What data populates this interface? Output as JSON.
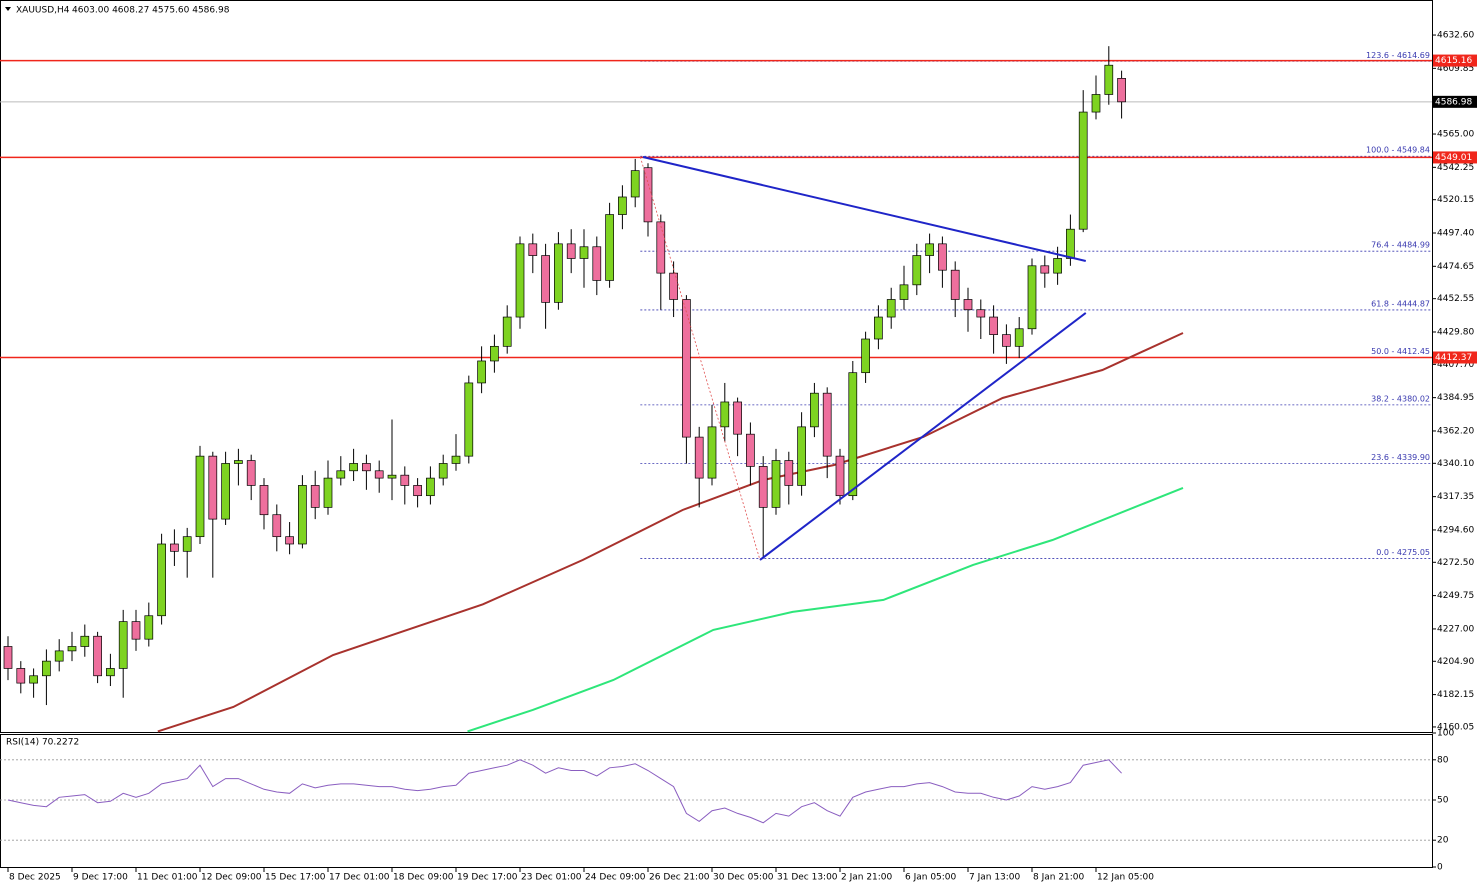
{
  "chart_data": {
    "type": "candlestick",
    "title": "XAUUSD,H4",
    "ohlc_text": "4603.00 4608.27 4575.60 4586.98",
    "up_color": "#7ed321",
    "down_color": "#ee6f9d",
    "xlim": [
      -0.625,
      111.25
    ],
    "xticks": [
      {
        "value": 0,
        "label": "8 Dec 2025"
      },
      {
        "value": 5,
        "label": "9 Dec 17:00"
      },
      {
        "value": 10,
        "label": "11 Dec 01:00"
      },
      {
        "value": 15,
        "label": "12 Dec 09:00"
      },
      {
        "value": 20,
        "label": "15 Dec 17:00"
      },
      {
        "value": 25,
        "label": "17 Dec 01:00"
      },
      {
        "value": 30,
        "label": "18 Dec 09:00"
      },
      {
        "value": 35,
        "label": "19 Dec 17:00"
      },
      {
        "value": 40,
        "label": "23 Dec 01:00"
      },
      {
        "value": 45,
        "label": "24 Dec 09:00"
      },
      {
        "value": 50,
        "label": "26 Dec 21:00"
      },
      {
        "value": 55,
        "label": "30 Dec 05:00"
      },
      {
        "value": 60,
        "label": "31 Dec 13:00"
      },
      {
        "value": 65,
        "label": "2 Jan 21:00"
      },
      {
        "value": 70,
        "label": "6 Jan 05:00"
      },
      {
        "value": 75,
        "label": "7 Jan 13:00"
      },
      {
        "value": 80,
        "label": "8 Jan 21:00"
      },
      {
        "value": 85,
        "label": "12 Jan 05:00"
      }
    ],
    "ylim": [
      4156.6,
      4653.8
    ],
    "yticks": [
      {
        "value": 4632.6,
        "label": "4632.60"
      },
      4609.85,
      {
        "value": 4565,
        "label": "4565.00"
      },
      4542.25,
      4520.15,
      {
        "value": 4497.4,
        "label": "4497.40"
      },
      4474.65,
      4452.55,
      {
        "value": 4429.8,
        "label": "4429.80"
      },
      {
        "value": 4407.7,
        "label": "4407.70"
      },
      4384.95,
      {
        "value": 4362.2,
        "label": "4362.20"
      },
      {
        "value": 4340.1,
        "label": "4340.10"
      },
      4317.35,
      {
        "value": 4294.6,
        "label": "4294.60"
      },
      {
        "value": 4272.5,
        "label": "4272.50"
      },
      4249.75,
      {
        "value": 4227,
        "label": "4227.00"
      },
      {
        "value": 4204.9,
        "label": "4204.90"
      },
      4182.15,
      4160.05
    ],
    "open": [
      4215,
      4200,
      4190,
      4195,
      4205,
      4212,
      4215,
      4222,
      4195,
      4200,
      4232,
      4220,
      4236,
      4285,
      4280,
      4290,
      4345,
      4302,
      4340,
      4342,
      4325,
      4305,
      4290,
      4285,
      4325,
      4310,
      4330,
      4335,
      4340,
      4335,
      4330,
      4332,
      4325,
      4318,
      4330,
      4340,
      4345,
      4395,
      4410,
      4420,
      4440,
      4490,
      4482,
      4450,
      4490,
      4480,
      4488,
      4465,
      4510,
      4522,
      4542,
      4505,
      4470,
      4452,
      4358,
      4330,
      4365,
      4382,
      4360,
      4338,
      4310,
      4342,
      4325,
      4365,
      4388,
      4345,
      4318,
      4402,
      4425,
      4440,
      4452,
      4462,
      4482,
      4490,
      4472,
      4452,
      4445,
      4440,
      4428,
      4420,
      4432,
      4475,
      4470,
      4480,
      4500,
      4580,
      4592,
      4603
    ],
    "high": [
      4222,
      4205,
      4200,
      4213,
      4220,
      4225,
      4230,
      4225,
      4210,
      4240,
      4240,
      4245,
      4292,
      4295,
      4296,
      4352,
      4348,
      4348,
      4350,
      4346,
      4330,
      4312,
      4300,
      4332,
      4335,
      4342,
      4345,
      4350,
      4346,
      4342,
      4370,
      4338,
      4330,
      4338,
      4346,
      4360,
      4400,
      4420,
      4428,
      4448,
      4495,
      4497,
      4490,
      4498,
      4500,
      4500,
      4495,
      4518,
      4530,
      4548,
      4545,
      4510,
      4478,
      4455,
      4365,
      4380,
      4395,
      4385,
      4368,
      4345,
      4350,
      4348,
      4375,
      4395,
      4392,
      4350,
      4410,
      4430,
      4448,
      4460,
      4475,
      4490,
      4497,
      4495,
      4478,
      4460,
      4452,
      4448,
      4435,
      4440,
      4480,
      4482,
      4488,
      4510,
      4595,
      4605,
      4625,
      4608.27
    ],
    "low": [
      4192,
      4183,
      4180,
      4175,
      4198,
      4205,
      4208,
      4190,
      4188,
      4180,
      4212,
      4215,
      4230,
      4270,
      4262,
      4285,
      4262,
      4298,
      4325,
      4315,
      4295,
      4280,
      4278,
      4282,
      4302,
      4305,
      4325,
      4328,
      4322,
      4320,
      4315,
      4312,
      4310,
      4312,
      4325,
      4335,
      4340,
      4388,
      4402,
      4415,
      4432,
      4470,
      4432,
      4445,
      4470,
      4460,
      4455,
      4460,
      4500,
      4515,
      4495,
      4445,
      4440,
      4340,
      4310,
      4325,
      4355,
      4345,
      4325,
      4275,
      4305,
      4312,
      4318,
      4358,
      4330,
      4312,
      4315,
      4395,
      4418,
      4432,
      4445,
      4455,
      4470,
      4460,
      4440,
      4430,
      4425,
      4415,
      4408,
      4412,
      4428,
      4460,
      4462,
      4475,
      4498,
      4575,
      4585,
      4575.6
    ],
    "close": [
      4200,
      4190,
      4195,
      4205,
      4212,
      4215,
      4222,
      4195,
      4200,
      4232,
      4220,
      4236,
      4285,
      4280,
      4290,
      4345,
      4302,
      4340,
      4342,
      4325,
      4305,
      4290,
      4285,
      4325,
      4310,
      4330,
      4335,
      4340,
      4335,
      4330,
      4332,
      4325,
      4318,
      4330,
      4340,
      4345,
      4395,
      4410,
      4420,
      4440,
      4490,
      4482,
      4450,
      4490,
      4480,
      4488,
      4465,
      4510,
      4522,
      4540,
      4505,
      4470,
      4452,
      4358,
      4330,
      4365,
      4382,
      4360,
      4338,
      4310,
      4342,
      4325,
      4365,
      4388,
      4345,
      4318,
      4402,
      4425,
      4440,
      4452,
      4462,
      4482,
      4490,
      4472,
      4452,
      4445,
      4440,
      4428,
      4420,
      4432,
      4475,
      4470,
      4480,
      4500,
      4580,
      4592,
      4612,
      4586.98
    ],
    "moving_averages": [
      {
        "color": "#a8322d",
        "x": [
          11.7,
          17.6,
          25.4,
          37.1,
          44.9,
          52.7,
          59,
          64.5,
          71.5,
          77.7,
          85.5,
          91.8
        ],
        "values": [
          4157,
          4173.7,
          4209.2,
          4243.8,
          4274.1,
          4308.2,
          4328.7,
          4338.9,
          4358.1,
          4384.7,
          4403.8,
          4429.1
        ]
      },
      {
        "color": "#2ee67a",
        "x": [
          35.9,
          41,
          47.3,
          55.1,
          61.3,
          68.4,
          75.4,
          81.6,
          91.8
        ],
        "values": [
          4157,
          4171.7,
          4192.1,
          4226.3,
          4238.6,
          4246.8,
          4270.7,
          4287.7,
          4323.3
        ]
      }
    ],
    "levels": [
      {
        "value": 4615.16,
        "color": "#f0261b"
      },
      {
        "value": 4549.01,
        "color": "#f0261b"
      },
      {
        "value": 4412.37,
        "color": "#f0261b"
      }
    ],
    "current_price": 4586.98,
    "fib_x": 49.4,
    "fib_levels": [
      {
        "value": 4614.69,
        "label": "123.6 - 4614.69"
      },
      {
        "value": 4549.84,
        "label": "100.0 - 4549.84"
      },
      {
        "value": 4484.99,
        "label": "76.4 - 4484.99"
      },
      {
        "value": 4444.87,
        "label": "61.8 - 4444.87"
      },
      {
        "value": 4412.45,
        "label": "50.0 - 4412.45"
      },
      {
        "value": 4380.02,
        "label": "38.2 - 4380.02"
      },
      {
        "value": 4339.9,
        "label": "23.6 - 4339.90"
      },
      {
        "value": 4275.05,
        "label": "0.0 - 4275.05"
      }
    ],
    "trendlines": [
      {
        "color": "#1f25c8",
        "x": [
          49.6,
          84.2
        ],
        "y": [
          4549.3,
          4478.3
        ]
      },
      {
        "color": "#1f25c8",
        "x": [
          58.75,
          84.2
        ],
        "y": [
          4274.1,
          4442.8
        ]
      },
      {
        "color": "#e05050",
        "x": [
          49.4,
          58.75
        ],
        "y": [
          4549.3,
          4274.1
        ],
        "dashed": true
      }
    ],
    "rsi": {
      "title": "RSI(14) 70.2272",
      "color": "#8a5ec0",
      "ylim": [
        0,
        100
      ],
      "yticks": [
        100,
        80,
        50,
        20,
        0
      ],
      "levels": [
        80,
        50,
        20
      ],
      "values": [
        50,
        48,
        46,
        45,
        52,
        53,
        54,
        48,
        49,
        55,
        52,
        55,
        62,
        64,
        66,
        76,
        60,
        66,
        66,
        62,
        58,
        56,
        55,
        62,
        59,
        61,
        62,
        62,
        61,
        60,
        60,
        58,
        57,
        58,
        60,
        61,
        70,
        72,
        74,
        76,
        80,
        76,
        70,
        74,
        72,
        72,
        68,
        74,
        75,
        77,
        72,
        66,
        60,
        40,
        34,
        42,
        44,
        40,
        37,
        33,
        40,
        38,
        45,
        48,
        42,
        38,
        52,
        56,
        58,
        60,
        60,
        62,
        63,
        60,
        56,
        55,
        55,
        52,
        50,
        53,
        60,
        58,
        60,
        63,
        76,
        78,
        80,
        70
      ]
    }
  }
}
